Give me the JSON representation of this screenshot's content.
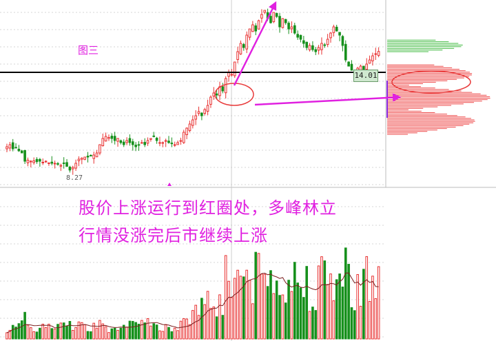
{
  "figure_label": "图三",
  "caption": {
    "line1": "股价上涨运行到红圈处，多峰林立",
    "line2": "行情没涨完后市继续上涨"
  },
  "price_tag": "14.01",
  "low_label": "8.27",
  "colors": {
    "up": "#e83030",
    "down": "#16901c",
    "annotation": "#e020e0",
    "circle": "#e83a3a",
    "support_line": "#000000",
    "volume_ma": "#7a1d1d"
  },
  "chart_data": {
    "type": "candlestick",
    "price": {
      "ylim": [
        7.5,
        16.5
      ],
      "support_level": 13.0,
      "highlighted_price": 14.01,
      "low_point": 8.27,
      "closes": [
        9.4,
        9.5,
        9.3,
        9.35,
        9.2,
        9.1,
        8.7,
        8.75,
        8.7,
        8.72,
        8.68,
        8.7,
        8.65,
        8.7,
        8.62,
        8.6,
        8.6,
        8.55,
        8.5,
        8.6,
        8.45,
        8.27,
        8.4,
        8.6,
        8.8,
        8.85,
        8.9,
        8.9,
        8.95,
        9.0,
        9.1,
        9.5,
        9.8,
        9.9,
        9.85,
        9.8,
        9.7,
        9.8,
        9.6,
        9.5,
        9.7,
        9.6,
        9.5,
        9.4,
        9.5,
        9.6,
        9.5,
        9.7,
        9.8,
        9.9,
        9.7,
        9.6,
        9.6,
        9.7,
        9.6,
        9.55,
        9.5,
        9.6,
        9.7,
        10.1,
        10.3,
        10.5,
        10.7,
        10.9,
        11.1,
        10.9,
        11.2,
        11.4,
        11.8,
        12.0,
        11.9,
        12.3,
        12.1,
        12.7,
        13.0,
        12.9,
        13.5,
        14.0,
        14.4,
        14.2,
        14.8,
        15.1,
        15.3,
        15.0,
        15.5,
        15.8,
        16.0,
        15.6,
        15.4,
        15.9,
        15.7,
        15.2,
        15.6,
        15.4,
        15.1,
        15.2,
        14.9,
        14.7,
        14.6,
        14.4,
        14.2,
        14.3,
        14.1,
        14.0,
        14.2,
        14.4,
        14.3,
        14.6,
        14.9,
        15.2,
        15.0,
        14.8,
        14.3,
        13.6,
        13.3,
        13.1,
        13.0,
        13.2,
        13.3,
        13.1,
        13.4,
        13.6,
        13.8,
        13.9,
        14.01
      ]
    },
    "volume_profile": {
      "direction": "horizontal",
      "green_band": [
        14.0,
        14.6
      ],
      "red_band": [
        10.0,
        13.4
      ]
    },
    "volume": {
      "series": "volume bars colored by candle direction, with moving-average line"
    },
    "annotations": [
      "red circle at breakout area near 13.0",
      "red circle at volume-profile peak near 14.3",
      "magenta arrow pointing up to price high",
      "magenta arrow pointing right along support line"
    ]
  }
}
